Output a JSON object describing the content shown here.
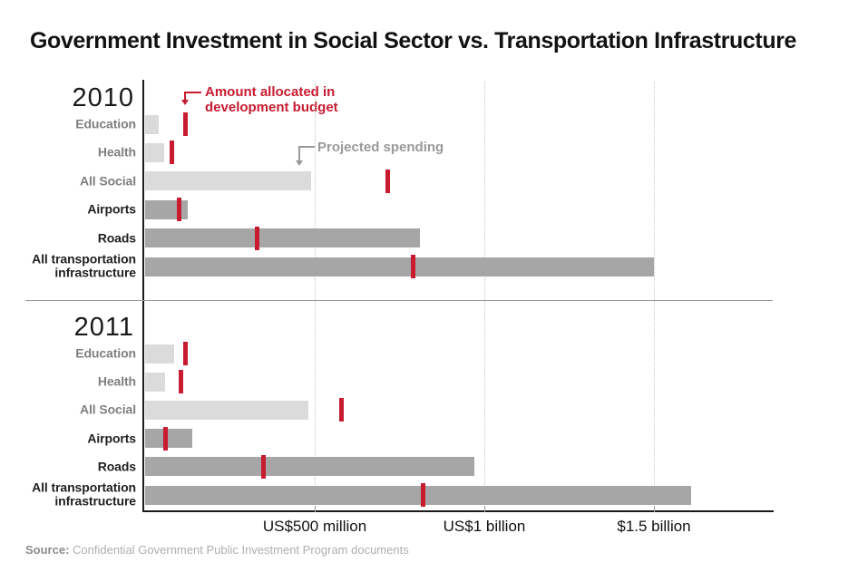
{
  "title": "Government Investment in Social Sector vs. Transportation Infrastructure",
  "legend": {
    "allocated_lines": [
      "Amount allocated in",
      "development budget"
    ],
    "projected_label": "Projected spending"
  },
  "axis": {
    "tick_labels": [
      "US$500 million",
      "US$1 billion",
      "$1.5 billion"
    ],
    "tick_values_million": [
      500,
      1000,
      1500
    ]
  },
  "source": {
    "prefix": "Source:",
    "text": "Confidential Government Public Investment Program documents"
  },
  "colors": {
    "allocated_red": "#c81b30",
    "projected_social_bar": "#dbdbdb",
    "projected_transport_bar": "#a6a6a6",
    "social_label": "#7f7f7f",
    "transport_label": "#1f1f1f",
    "projected_legend_gray": "#9a9a9a",
    "gridline": "#c6c6c6"
  },
  "chart_data": {
    "type": "bar",
    "orientation": "horizontal",
    "unit": "US$ millions",
    "xlim_million": [
      0,
      1860
    ],
    "x_gridlines_million": [
      500,
      1000,
      1500
    ],
    "series": [
      {
        "name": "Projected spending",
        "mark": "gray-bar"
      },
      {
        "name": "Amount allocated in development budget",
        "mark": "red-tick"
      }
    ],
    "panels": [
      {
        "year": "2010",
        "rows": [
          {
            "label": "Education",
            "category": "social",
            "projected_spending_million": 40,
            "allocated_million": 118
          },
          {
            "label": "Health",
            "category": "social",
            "projected_spending_million": 55,
            "allocated_million": 80
          },
          {
            "label": "All Social",
            "category": "social",
            "projected_spending_million": 490,
            "allocated_million": 715
          },
          {
            "label": "Airports",
            "category": "transport",
            "projected_spending_million": 125,
            "allocated_million": 100
          },
          {
            "label": "Roads",
            "category": "transport",
            "projected_spending_million": 810,
            "allocated_million": 330
          },
          {
            "label": "All transportation infrastructure",
            "category": "transport",
            "projected_spending_million": 1500,
            "allocated_million": 790
          }
        ]
      },
      {
        "year": "2011",
        "rows": [
          {
            "label": "Education",
            "category": "social",
            "projected_spending_million": 85,
            "allocated_million": 120
          },
          {
            "label": "Health",
            "category": "social",
            "projected_spending_million": 60,
            "allocated_million": 105
          },
          {
            "label": "All Social",
            "category": "social",
            "projected_spending_million": 480,
            "allocated_million": 580
          },
          {
            "label": "Airports",
            "category": "transport",
            "projected_spending_million": 140,
            "allocated_million": 60
          },
          {
            "label": "Roads",
            "category": "transport",
            "projected_spending_million": 970,
            "allocated_million": 350
          },
          {
            "label": "All transportation infrastructure",
            "category": "transport",
            "projected_spending_million": 1610,
            "allocated_million": 820
          }
        ]
      }
    ]
  }
}
